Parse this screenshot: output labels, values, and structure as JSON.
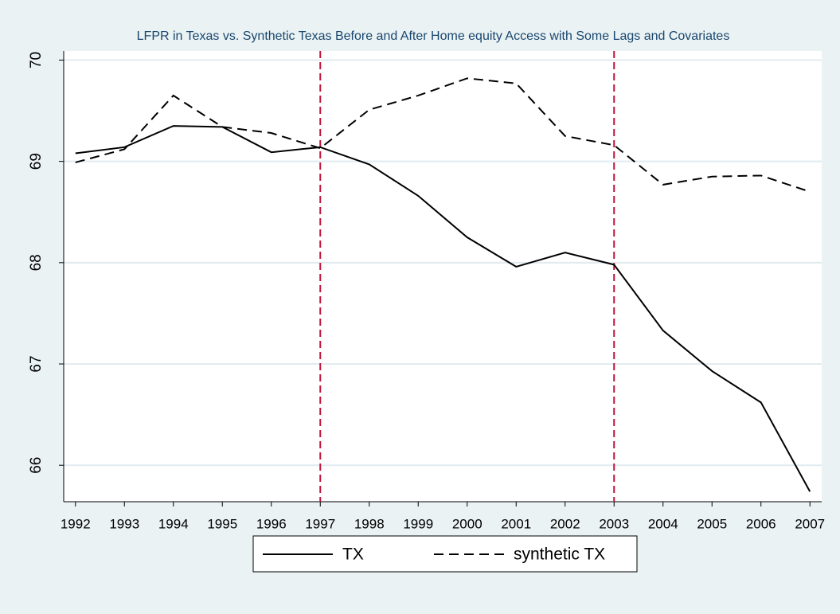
{
  "chart_data": {
    "type": "line",
    "title": "LFPR in Texas vs. Synthetic Texas Before and After Home equity Access with Some Lags and Covariates",
    "x": [
      1992,
      1993,
      1994,
      1995,
      1996,
      1997,
      1998,
      1999,
      2000,
      2001,
      2002,
      2003,
      2004,
      2005,
      2006,
      2007
    ],
    "series": [
      {
        "name": "TX",
        "color": "#000000",
        "line_style": "solid",
        "values": [
          69.08,
          69.14,
          69.35,
          69.34,
          69.09,
          69.14,
          68.97,
          68.66,
          68.25,
          67.96,
          68.1,
          67.98,
          67.33,
          66.93,
          66.62,
          65.74
        ]
      },
      {
        "name": "synthetic TX",
        "color": "#000000",
        "line_style": "dashed",
        "values": [
          68.99,
          69.12,
          69.65,
          69.34,
          69.28,
          69.13,
          69.51,
          69.65,
          69.82,
          69.77,
          69.25,
          69.16,
          68.77,
          68.85,
          68.86,
          68.7
        ]
      }
    ],
    "xlim": [
      1991.76,
      2007.24
    ],
    "xticks": [
      1992,
      1993,
      1994,
      1995,
      1996,
      1997,
      1998,
      1999,
      2000,
      2001,
      2002,
      2003,
      2004,
      2005,
      2006,
      2007
    ],
    "ylim": [
      65.64,
      70.09
    ],
    "yticks": [
      66,
      67,
      68,
      69,
      70
    ],
    "grid": true,
    "xlines": [
      1997,
      2003
    ],
    "xline_color": "#c0143c",
    "legend_position": "bottom"
  }
}
